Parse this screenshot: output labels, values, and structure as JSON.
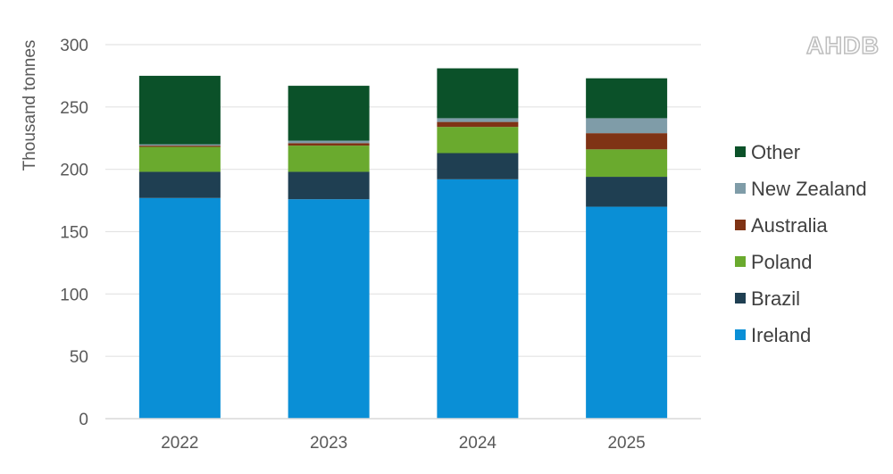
{
  "logo": {
    "text": "AHDB"
  },
  "chart_data": {
    "type": "bar",
    "stacked": true,
    "title": "",
    "xlabel": "",
    "ylabel": "Thousand tonnes",
    "ylim": [
      0,
      300
    ],
    "yticks": [
      0,
      50,
      100,
      150,
      200,
      250,
      300
    ],
    "grid": true,
    "legend_position": "right",
    "categories": [
      "2022",
      "2023",
      "2024",
      "2025"
    ],
    "series": [
      {
        "name": "Ireland",
        "color": "#0a8fd6",
        "values": [
          177,
          176,
          192,
          170
        ]
      },
      {
        "name": "Brazil",
        "color": "#1f3f52",
        "values": [
          21,
          22,
          21,
          24
        ]
      },
      {
        "name": "Poland",
        "color": "#6aaa2e",
        "values": [
          20,
          21,
          21,
          22
        ]
      },
      {
        "name": "Australia",
        "color": "#7f3315",
        "values": [
          1,
          2,
          4,
          13
        ]
      },
      {
        "name": "New Zealand",
        "color": "#7f9ca8",
        "values": [
          1,
          2,
          3,
          12
        ]
      },
      {
        "name": "Other",
        "color": "#0b5129",
        "values": [
          55,
          44,
          40,
          32
        ]
      }
    ]
  }
}
